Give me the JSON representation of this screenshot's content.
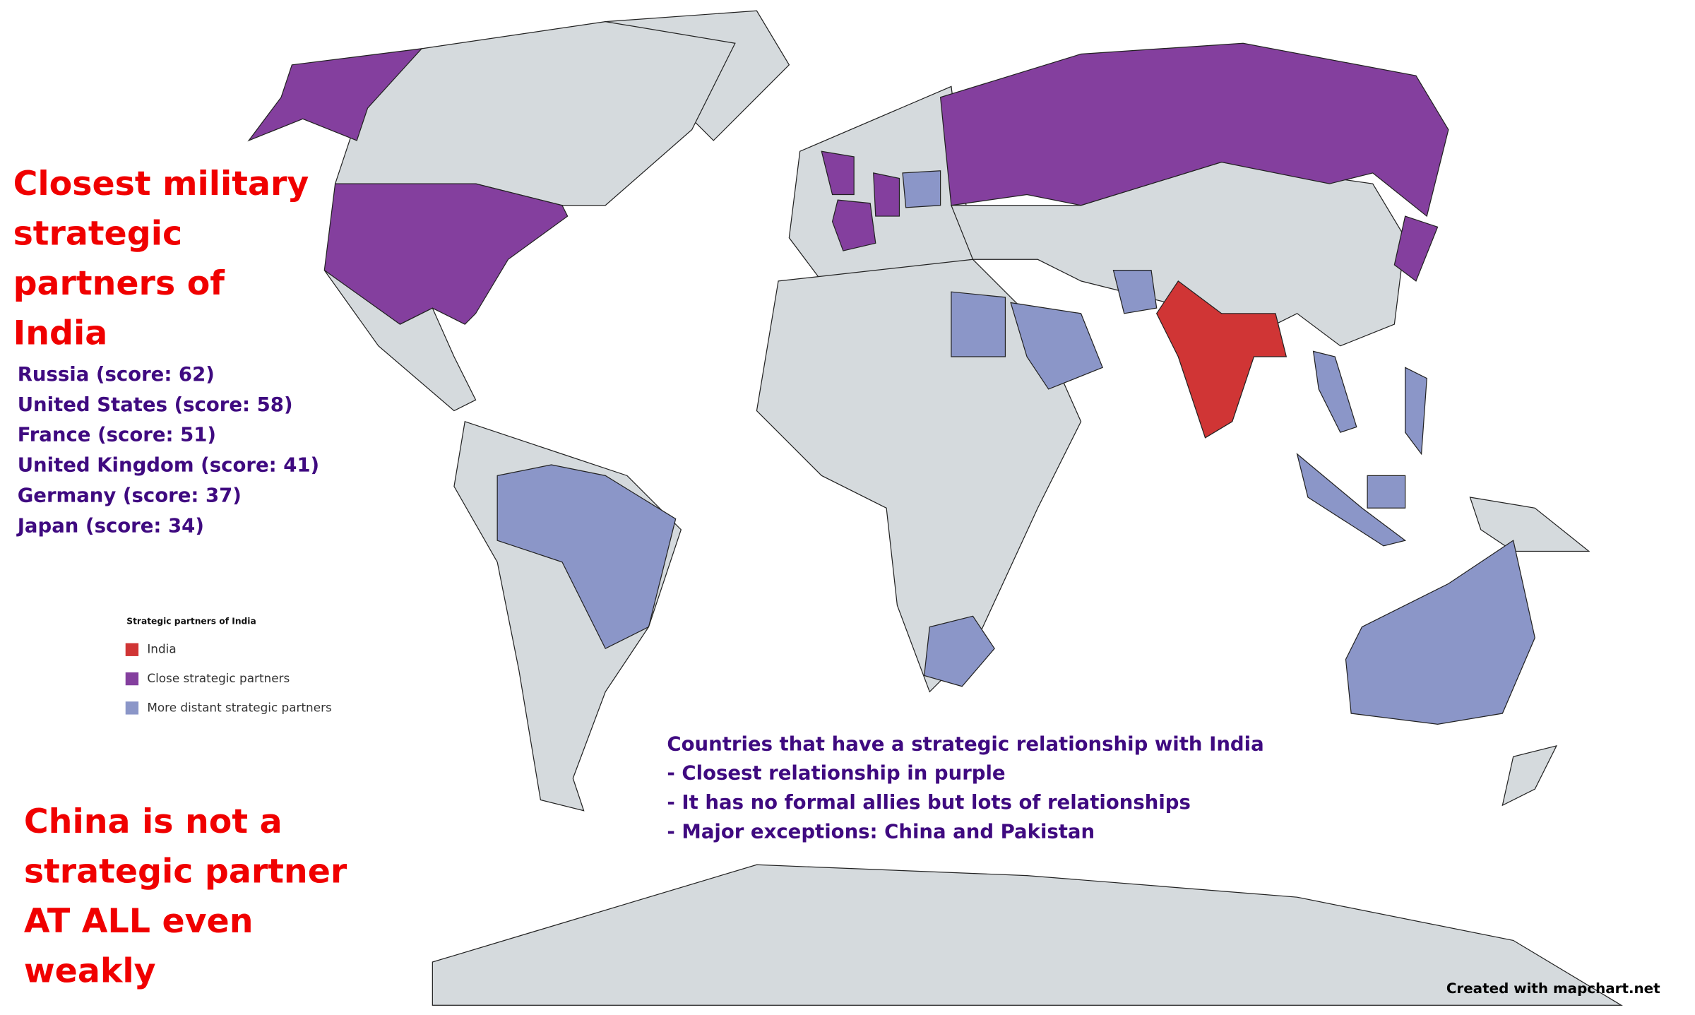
{
  "title": [
    "Closest military",
    "strategic",
    "partners of",
    "India"
  ],
  "ranking": [
    "Russia (score: 62)",
    "United States (score: 58)",
    "France (score: 51)",
    "United Kingdom (score: 41)",
    "Germany (score: 37)",
    "Japan (score: 34)"
  ],
  "legend": {
    "title": "Strategic partners of India",
    "items": [
      {
        "label": "India",
        "color": "#d03535"
      },
      {
        "label": "Close strategic partners",
        "color": "#843f9e"
      },
      {
        "label": "More distant strategic partners",
        "color": "#8b96c8"
      }
    ]
  },
  "notes": {
    "heading": "Countries that have a strategic relationship with India",
    "lines": [
      "- Closest relationship in purple",
      "- It has no formal allies but lots of relationships",
      "- Major exceptions: China and Pakistan"
    ]
  },
  "warning": [
    "China is not a",
    "strategic partner",
    "AT ALL even",
    "weakly"
  ],
  "credit": "Created with mapchart.net"
}
